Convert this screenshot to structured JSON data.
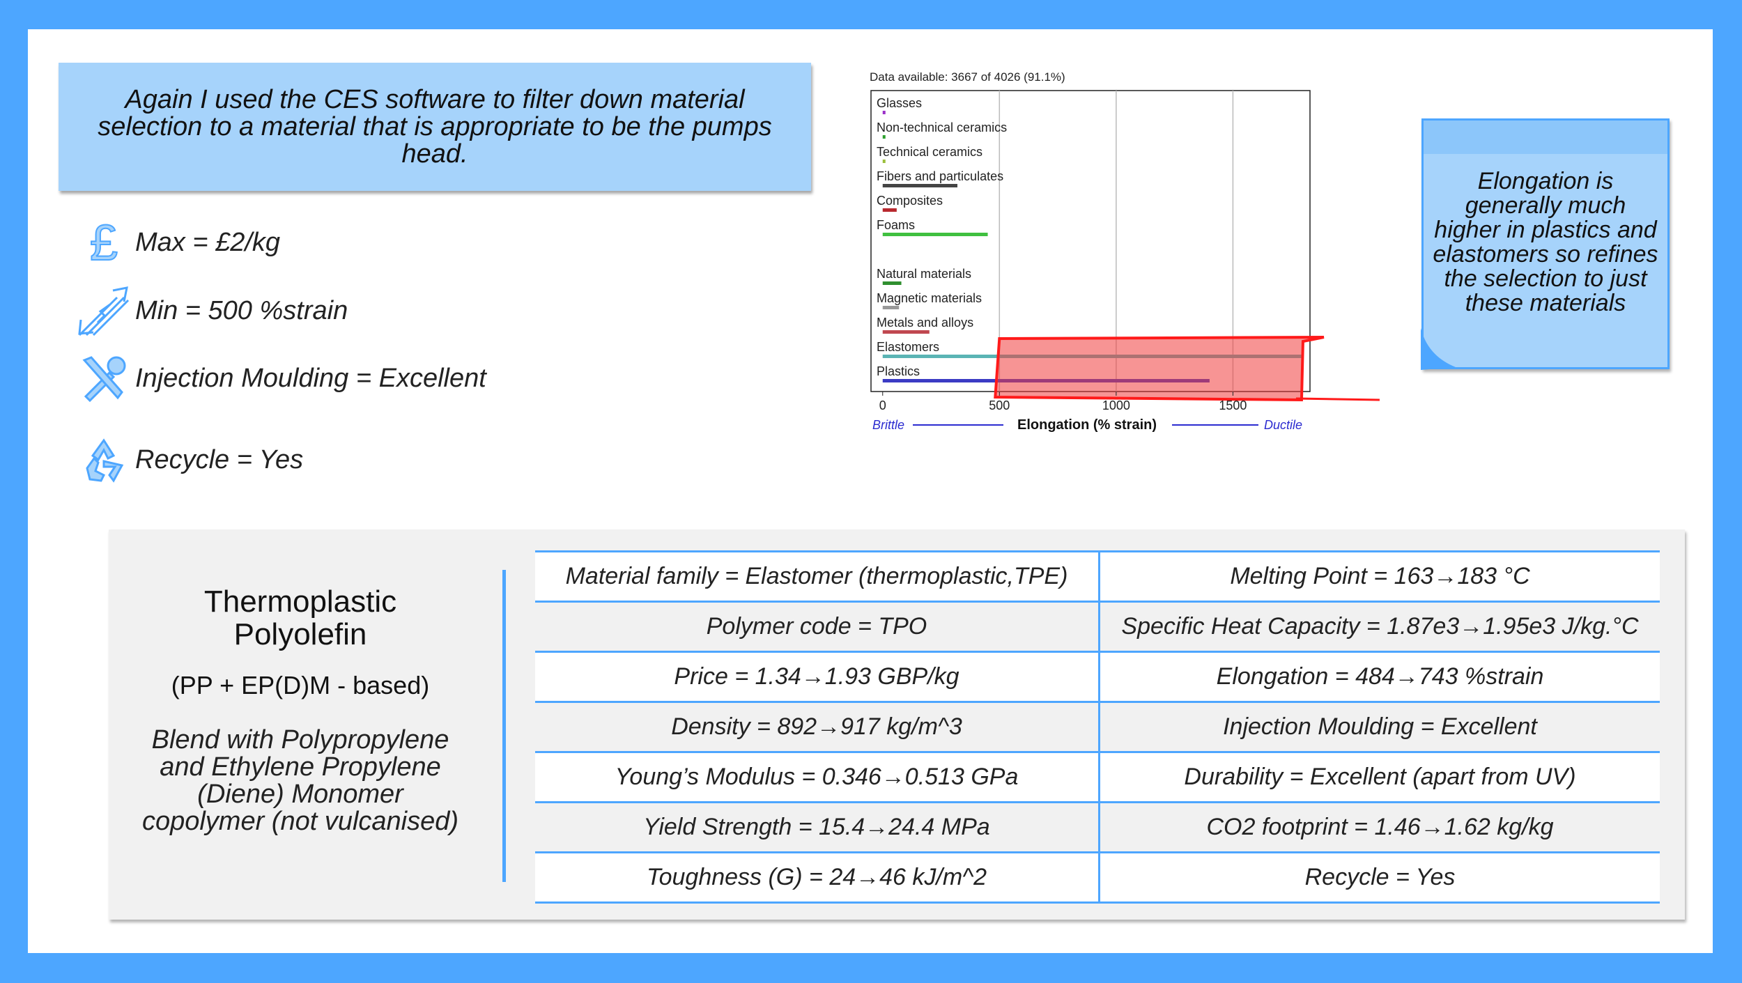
{
  "intro": "Again I used the CES software to filter down material selection to a material that is appropriate to be the pumps head.",
  "criteria": [
    {
      "icon": "pound-sign-icon",
      "text": "Max = £2/kg"
    },
    {
      "icon": "strain-arrows-icon",
      "text": "Min = 500 %strain"
    },
    {
      "icon": "tools-icon",
      "text": "Injection Moulding = Excellent"
    },
    {
      "icon": "recycle-icon",
      "text": "Recycle = Yes"
    }
  ],
  "chart_data": {
    "type": "bar",
    "data_available": "Data available: 3667 of 4026 (91.1%)",
    "categories": [
      "Glasses",
      "Non-technical ceramics",
      "Technical ceramics",
      "Fibers and particulates",
      "Composites",
      "Foams",
      "Natural materials",
      "Magnetic materials",
      "Metals and alloys",
      "Elastomers",
      "Plastics"
    ],
    "ranges": [
      [
        0,
        3
      ],
      [
        0,
        2
      ],
      [
        0,
        3
      ],
      [
        0,
        320
      ],
      [
        0,
        60
      ],
      [
        0,
        450
      ],
      [
        0,
        80
      ],
      [
        0,
        70
      ],
      [
        0,
        200
      ],
      [
        0,
        1800
      ],
      [
        0,
        1400
      ]
    ],
    "colors": [
      "#9b30c8",
      "#2ea02e",
      "#9bbf3c",
      "#444444",
      "#b8282e",
      "#40c040",
      "#2f8f2f",
      "#999999",
      "#c04850",
      "#5ab4b4",
      "#3b3bc4"
    ],
    "xlim": [
      -50,
      1830
    ],
    "xticks": [
      0,
      500,
      1000,
      1500
    ],
    "xlabel": "Elongation (% strain)",
    "left_label": "Brittle",
    "right_label": "Ductile",
    "grid": true,
    "selection_box": [
      500,
      1800
    ]
  },
  "note": "Elongation is generally much higher in plastics and elastomers so refines the selection to just these materials",
  "material": {
    "name": "Thermoplastic Polyolefin",
    "subtitle": "(PP + EP(D)M - based)",
    "description": "Blend with Polypropylene and Ethylene Propylene (Diene) Monomer copolymer (not vulcanised)"
  },
  "properties": [
    [
      "Material family = Elastomer (thermoplastic,TPE)",
      "Melting Point = 163→183 °C"
    ],
    [
      "Polymer code = TPO",
      "Specific Heat Capacity = 1.87e3→1.95e3 J/kg.°C"
    ],
    [
      "Price = 1.34→1.93 GBP/kg",
      "Elongation = 484→743 %strain"
    ],
    [
      "Density = 892→917 kg/m^3",
      "Injection Moulding = Excellent"
    ],
    [
      "Young’s Modulus = 0.346→0.513 GPa",
      "Durability = Excellent (apart from UV)"
    ],
    [
      "Yield Strength = 15.4→24.4 MPa",
      "CO2 footprint = 1.46→1.62 kg/kg"
    ],
    [
      "Toughness (G) = 24→46 kJ/m^2",
      "Recycle = Yes"
    ]
  ]
}
